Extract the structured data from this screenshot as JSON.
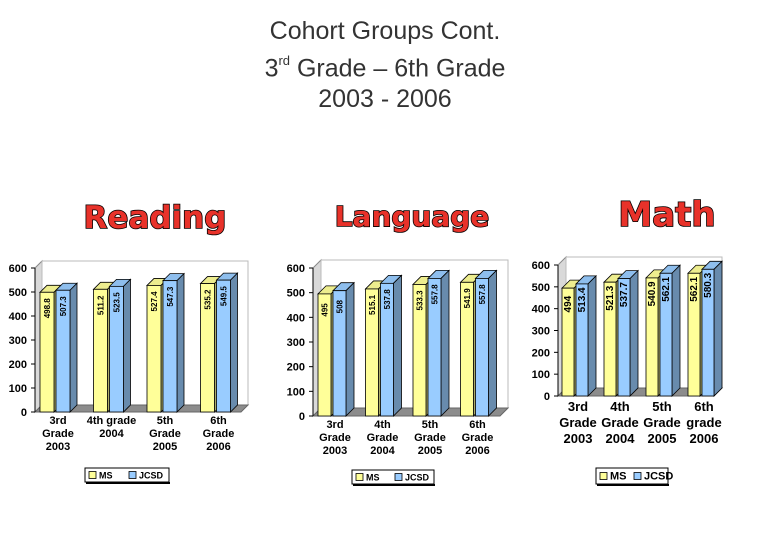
{
  "slide": {
    "title_line1": "Cohort Groups Cont.",
    "title_line2_pre": "3",
    "title_line2_sup": "rd",
    "title_line2_post": " Grade – 6th Grade",
    "title_line3": "2003 - 2006"
  },
  "chart_data": [
    {
      "type": "bar",
      "title": "Reading",
      "categories": [
        [
          "3rd",
          "Grade",
          "2003"
        ],
        [
          "4th grade",
          "2004"
        ],
        [
          "5th",
          "Grade",
          "2005"
        ],
        [
          "6th",
          "Grade",
          "2006"
        ]
      ],
      "series": [
        {
          "name": "MS",
          "values": [
            498.8,
            511.2,
            527.4,
            535.2
          ],
          "labels": [
            "498.8",
            "511.2",
            "527.4",
            "535.2"
          ],
          "color": "#ffff99"
        },
        {
          "name": "JCSD",
          "values": [
            507.3,
            523.5,
            547.3,
            549.5
          ],
          "labels": [
            "507.3",
            "523.5",
            "547.3",
            "549.5"
          ],
          "color": "#99ccff"
        }
      ],
      "yticks": [
        "0",
        "100",
        "200",
        "300",
        "400",
        "500",
        "600"
      ],
      "ylim": [
        0,
        600
      ],
      "grid": false,
      "legend": "bottom"
    },
    {
      "type": "bar",
      "title": "Language",
      "categories": [
        [
          "3rd",
          "Grade",
          "2003"
        ],
        [
          "4th",
          "Grade",
          "2004"
        ],
        [
          "5th",
          "Grade",
          "2005"
        ],
        [
          "6th",
          "Grade",
          "2006"
        ]
      ],
      "series": [
        {
          "name": "MS",
          "values": [
            495,
            515.1,
            533.3,
            541.9
          ],
          "labels": [
            "495",
            "515.1",
            "533.3",
            "541.9"
          ],
          "color": "#ffff99"
        },
        {
          "name": "JCSD",
          "values": [
            508,
            537.8,
            557.8,
            557.8
          ],
          "labels": [
            "508",
            "537.8",
            "557.8",
            "557.8"
          ],
          "color": "#99ccff"
        }
      ],
      "yticks": [
        "0",
        "100",
        "200",
        "300",
        "400",
        "500",
        "600"
      ],
      "ylim": [
        0,
        600
      ],
      "grid": false,
      "legend": "bottom"
    },
    {
      "type": "bar",
      "title": "Math",
      "categories": [
        [
          "3rd",
          "Grade",
          "2003"
        ],
        [
          "4th",
          "Grade",
          "2004"
        ],
        [
          "5th",
          "Grade",
          "2005"
        ],
        [
          "6th",
          "grade",
          "2006"
        ]
      ],
      "series": [
        {
          "name": "MS",
          "values": [
            494,
            521.3,
            540.9,
            562.1
          ],
          "labels": [
            "494",
            "521.3",
            "540.9",
            "562.1"
          ],
          "color": "#ffff99"
        },
        {
          "name": "JCSD",
          "values": [
            513.4,
            537.7,
            562.1,
            580.3
          ],
          "labels": [
            "513.4",
            "537.7",
            "562.1",
            "580.3"
          ],
          "color": "#99ccff"
        }
      ],
      "yticks": [
        "0",
        "100",
        "200",
        "300",
        "400",
        "500",
        "600"
      ],
      "ylim": [
        0,
        600
      ],
      "grid": false,
      "legend": "bottom"
    }
  ]
}
